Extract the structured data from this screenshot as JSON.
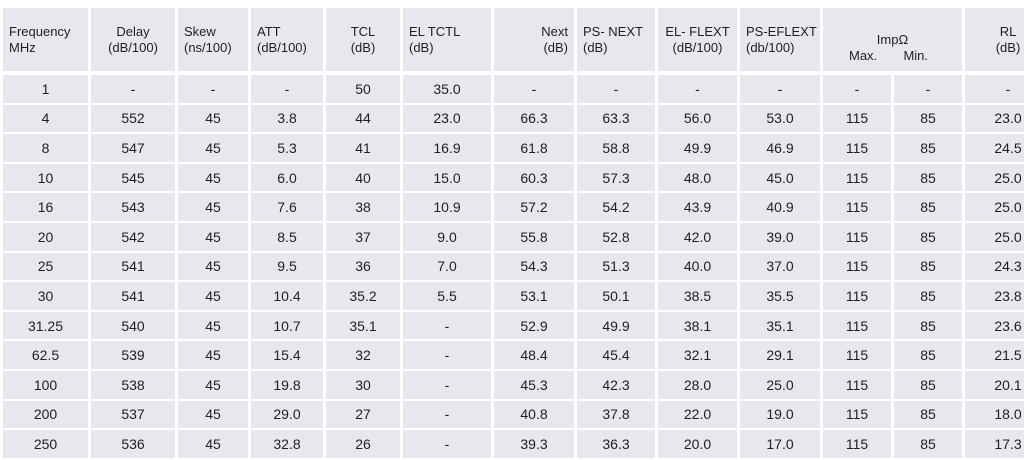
{
  "headers": [
    {
      "label": "Frequency\nMHz",
      "align": "left"
    },
    {
      "label": "Delay\n(dB/100)",
      "align": "center"
    },
    {
      "label": "Skew\n(ns/100)",
      "align": "left"
    },
    {
      "label": "ATT\n(dB/100)",
      "align": "left"
    },
    {
      "label": "TCL\n(dB)",
      "align": "center"
    },
    {
      "label": "EL TCTL\n(dB)",
      "align": "left"
    },
    {
      "label": "Next\n(dB)",
      "align": "right"
    },
    {
      "label": "PS- NEXT\n(dB)",
      "align": "left"
    },
    {
      "label": "EL- FLEXT\n(dB/100)",
      "align": "center"
    },
    {
      "label": "PS-EFLEXT\n(db/100)",
      "align": "left"
    }
  ],
  "imp_header": {
    "title": "ImpΩ",
    "max": "Max.",
    "min": "Min."
  },
  "rl_header": "RL\n(dB)",
  "rows": [
    [
      "1",
      "-",
      "-",
      "-",
      "50",
      "35.0",
      "-",
      "-",
      "-",
      "-",
      "-",
      "-",
      "-"
    ],
    [
      "4",
      "552",
      "45",
      "3.8",
      "44",
      "23.0",
      "66.3",
      "63.3",
      "56.0",
      "53.0",
      "115",
      "85",
      "23.0"
    ],
    [
      "8",
      "547",
      "45",
      "5.3",
      "41",
      "16.9",
      "61.8",
      "58.8",
      "49.9",
      "46.9",
      "115",
      "85",
      "24.5"
    ],
    [
      "10",
      "545",
      "45",
      "6.0",
      "40",
      "15.0",
      "60.3",
      "57.3",
      "48.0",
      "45.0",
      "115",
      "85",
      "25.0"
    ],
    [
      "16",
      "543",
      "45",
      "7.6",
      "38",
      "10.9",
      "57.2",
      "54.2",
      "43.9",
      "40.9",
      "115",
      "85",
      "25.0"
    ],
    [
      "20",
      "542",
      "45",
      "8.5",
      "37",
      "9.0",
      "55.8",
      "52.8",
      "42.0",
      "39.0",
      "115",
      "85",
      "25.0"
    ],
    [
      "25",
      "541",
      "45",
      "9.5",
      "36",
      "7.0",
      "54.3",
      "51.3",
      "40.0",
      "37.0",
      "115",
      "85",
      "24.3"
    ],
    [
      "30",
      "541",
      "45",
      "10.4",
      "35.2",
      "5.5",
      "53.1",
      "50.1",
      "38.5",
      "35.5",
      "115",
      "85",
      "23.8"
    ],
    [
      "31.25",
      "540",
      "45",
      "10.7",
      "35.1",
      "-",
      "52.9",
      "49.9",
      "38.1",
      "35.1",
      "115",
      "85",
      "23.6"
    ],
    [
      "62.5",
      "539",
      "45",
      "15.4",
      "32",
      "-",
      "48.4",
      "45.4",
      "32.1",
      "29.1",
      "115",
      "85",
      "21.5"
    ],
    [
      "100",
      "538",
      "45",
      "19.8",
      "30",
      "-",
      "45.3",
      "42.3",
      "28.0",
      "25.0",
      "115",
      "85",
      "20.1"
    ],
    [
      "200",
      "537",
      "45",
      "29.0",
      "27",
      "-",
      "40.8",
      "37.8",
      "22.0",
      "19.0",
      "115",
      "85",
      "18.0"
    ],
    [
      "250",
      "536",
      "45",
      "32.8",
      "26",
      "-",
      "39.3",
      "36.3",
      "20.0",
      "17.0",
      "115",
      "85",
      "17.3"
    ]
  ],
  "colors": {
    "cell_bg": "#e6e8ee",
    "text": "#1f1f1f",
    "separator": "#ffffff"
  }
}
